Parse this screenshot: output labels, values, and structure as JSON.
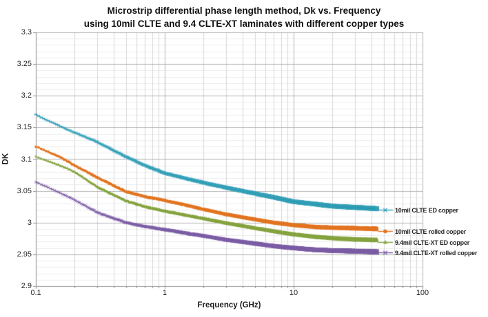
{
  "title": {
    "line1": "Microstrip differential phase length method, Dk vs. Frequency",
    "line2": "using 10mil CLTE and 9.4 CLTE-XT laminates with different copper types"
  },
  "axes": {
    "x_label": "Frequency (GHz)",
    "y_label": "DK",
    "x_tick_labels": [
      "0.1",
      "1",
      "10",
      "100"
    ],
    "x_tick_values": [
      0.1,
      1,
      10,
      100
    ],
    "y_tick_labels": [
      "3.3",
      "3.25",
      "3.2",
      "3.15",
      "3.1",
      "3.05",
      "3",
      "2.95",
      "2.9"
    ],
    "y_tick_values": [
      3.3,
      3.25,
      3.2,
      3.15,
      3.1,
      3.05,
      3.0,
      2.95,
      2.9
    ]
  },
  "chart_data": {
    "type": "line",
    "title": "Microstrip differential phase length method, Dk vs. Frequency using 10mil CLTE and 9.4 CLTE-XT laminates with different copper types",
    "xlabel": "Frequency (GHz)",
    "ylabel": "DK",
    "x_scale": "log",
    "xlim": [
      0.1,
      100
    ],
    "ylim": [
      2.9,
      3.3
    ],
    "y_major_step": 0.05,
    "y_minor_step": 0.01,
    "grid": "major+minor",
    "legend_position": "right",
    "freq_range_ghz": [
      0.1,
      44.5
    ],
    "series": [
      {
        "name": "10mil CLTE ED copper",
        "color": "#35a1b9",
        "marker": "asterisk",
        "points": [
          [
            0.1,
            3.17
          ],
          [
            0.15,
            3.153
          ],
          [
            0.2,
            3.142
          ],
          [
            0.3,
            3.127
          ],
          [
            0.5,
            3.104
          ],
          [
            0.7,
            3.09
          ],
          [
            1,
            3.078
          ],
          [
            1.5,
            3.069
          ],
          [
            2,
            3.063
          ],
          [
            3,
            3.055
          ],
          [
            5,
            3.046
          ],
          [
            7,
            3.04
          ],
          [
            10,
            3.033
          ],
          [
            15,
            3.029
          ],
          [
            20,
            3.026
          ],
          [
            30,
            3.024
          ],
          [
            44.5,
            3.022
          ]
        ]
      },
      {
        "name": "10mil CLTE rolled copper",
        "color": "#e2731f",
        "marker": "circle",
        "points": [
          [
            0.1,
            3.12
          ],
          [
            0.15,
            3.105
          ],
          [
            0.2,
            3.09
          ],
          [
            0.3,
            3.071
          ],
          [
            0.5,
            3.049
          ],
          [
            0.7,
            3.041
          ],
          [
            1,
            3.035
          ],
          [
            1.5,
            3.027
          ],
          [
            2,
            3.021
          ],
          [
            3,
            3.013
          ],
          [
            5,
            3.005
          ],
          [
            7,
            3.0
          ],
          [
            10,
            2.996
          ],
          [
            15,
            2.993
          ],
          [
            20,
            2.992
          ],
          [
            30,
            2.991
          ],
          [
            44.5,
            2.99
          ]
        ]
      },
      {
        "name": "9.4mil CLTE-XT ED copper",
        "color": "#84a23d",
        "marker": "triangle",
        "points": [
          [
            0.1,
            3.104
          ],
          [
            0.15,
            3.091
          ],
          [
            0.2,
            3.08
          ],
          [
            0.3,
            3.056
          ],
          [
            0.5,
            3.034
          ],
          [
            0.7,
            3.025
          ],
          [
            1,
            3.018
          ],
          [
            1.5,
            3.011
          ],
          [
            2,
            3.006
          ],
          [
            3,
            2.999
          ],
          [
            5,
            2.991
          ],
          [
            7,
            2.986
          ],
          [
            10,
            2.981
          ],
          [
            15,
            2.977
          ],
          [
            20,
            2.975
          ],
          [
            30,
            2.973
          ],
          [
            44.5,
            2.972
          ]
        ]
      },
      {
        "name": "9.4mil CLTE-XT rolled copper",
        "color": "#7a5ba5",
        "marker": "x",
        "points": [
          [
            0.1,
            3.064
          ],
          [
            0.15,
            3.048
          ],
          [
            0.2,
            3.036
          ],
          [
            0.3,
            3.016
          ],
          [
            0.5,
            3.0
          ],
          [
            0.7,
            2.994
          ],
          [
            1,
            2.989
          ],
          [
            1.5,
            2.983
          ],
          [
            2,
            2.979
          ],
          [
            3,
            2.973
          ],
          [
            5,
            2.967
          ],
          [
            7,
            2.963
          ],
          [
            10,
            2.96
          ],
          [
            15,
            2.957
          ],
          [
            20,
            2.956
          ],
          [
            30,
            2.955
          ],
          [
            44.5,
            2.954
          ]
        ]
      }
    ]
  },
  "colors": {
    "grid_major": "#b3b3b3",
    "grid_minor_v": "#d8d8d8",
    "grid_minor_h": "#ededed",
    "axis": "#8f8f8f",
    "text": "#262626"
  }
}
